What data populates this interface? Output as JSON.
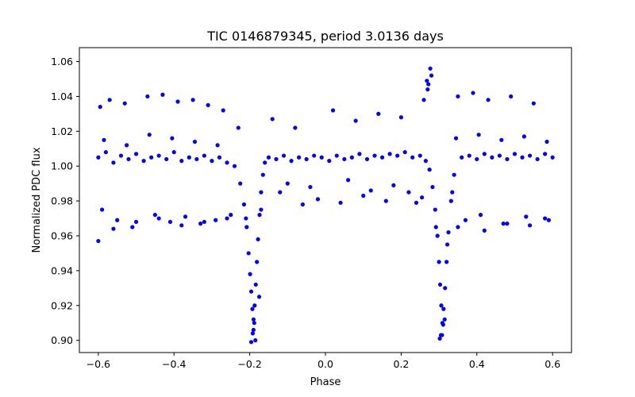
{
  "chart_data": {
    "type": "scatter",
    "title": "TIC 0146879345, period 3.0136 days",
    "xlabel": "Phase",
    "ylabel": "Normalized PDC flux",
    "xlim": [
      -0.65,
      0.65
    ],
    "ylim": [
      0.893,
      1.068
    ],
    "xticks": [
      -0.6,
      -0.4,
      -0.2,
      0.0,
      0.2,
      0.4,
      0.6
    ],
    "xtick_labels": [
      "−0.6",
      "−0.4",
      "−0.2",
      "0.0",
      "0.2",
      "0.4",
      "0.6"
    ],
    "yticks": [
      0.9,
      0.92,
      0.94,
      0.96,
      0.98,
      1.0,
      1.02,
      1.04,
      1.06
    ],
    "ytick_labels": [
      "0.90",
      "0.92",
      "0.94",
      "0.96",
      "0.98",
      "1.00",
      "1.02",
      "1.04",
      "1.06"
    ],
    "grid": false,
    "marker_color": "#0000ff",
    "series": [
      {
        "x": [
          -0.6,
          -0.58,
          -0.56,
          -0.54,
          -0.52,
          -0.5,
          -0.48,
          -0.46,
          -0.44,
          -0.42,
          -0.4,
          -0.38,
          -0.36,
          -0.34,
          -0.32,
          -0.3,
          -0.28,
          -0.26,
          -0.24,
          -0.225,
          -0.215,
          -0.208,
          -0.203,
          -0.199,
          -0.196,
          -0.193,
          -0.19,
          -0.187,
          -0.184,
          -0.181,
          -0.178,
          -0.174,
          -0.17,
          -0.165,
          -0.16,
          -0.15,
          -0.13,
          -0.11,
          -0.09,
          -0.07,
          -0.05,
          -0.03,
          -0.01,
          0.01,
          0.03,
          0.05,
          0.07,
          0.09,
          0.11,
          0.13,
          0.15,
          0.17,
          0.19,
          0.21,
          0.23,
          0.25,
          0.265,
          0.275,
          0.283,
          0.29,
          0.296,
          0.3,
          0.303,
          0.306,
          0.309,
          0.312,
          0.316,
          0.32,
          0.325,
          0.332,
          0.34,
          0.36,
          0.38,
          0.4,
          0.42,
          0.44,
          0.46,
          0.48,
          0.5,
          0.52,
          0.54,
          0.56,
          0.58,
          0.6,
          -0.595,
          -0.57,
          -0.53,
          -0.47,
          -0.43,
          -0.39,
          -0.35,
          -0.31,
          -0.27,
          -0.23,
          -0.59,
          -0.55,
          -0.51,
          -0.45,
          -0.41,
          -0.37,
          -0.33,
          -0.29,
          -0.25,
          -0.19,
          -0.185,
          -0.175,
          -0.12,
          -0.06,
          -0.02,
          0.04,
          0.1,
          0.16,
          0.22,
          0.24,
          0.255,
          0.27,
          0.28,
          0.305,
          0.315,
          0.335,
          0.37,
          0.41,
          0.47,
          0.53,
          0.59,
          -0.14,
          -0.08,
          0.02,
          0.08,
          0.14,
          0.2,
          -0.585,
          -0.525,
          -0.465,
          -0.405,
          -0.345,
          -0.285,
          0.345,
          0.405,
          0.465,
          0.525,
          0.585,
          0.268,
          0.272,
          0.277,
          0.26,
          0.35,
          0.39,
          0.43,
          0.49,
          0.55,
          -0.6,
          -0.56,
          -0.5,
          -0.44,
          -0.38,
          -0.32,
          -0.26,
          0.35,
          0.42,
          0.48,
          0.54,
          0.58,
          -0.1,
          -0.04,
          0.06,
          0.12,
          0.18,
          -0.196,
          -0.192,
          -0.188,
          0.302,
          0.308,
          0.311,
          -0.21,
          -0.17,
          0.292,
          0.322
        ],
        "y": [
          1.005,
          1.008,
          1.002,
          1.006,
          1.004,
          1.007,
          1.003,
          1.005,
          1.006,
          1.004,
          1.008,
          1.003,
          1.005,
          1.004,
          1.006,
          1.003,
          1.005,
          1.002,
          1.0,
          0.99,
          0.978,
          0.965,
          0.95,
          0.938,
          0.928,
          0.918,
          0.912,
          0.92,
          0.932,
          0.945,
          0.958,
          0.972,
          0.985,
          0.995,
          1.002,
          1.005,
          1.004,
          1.006,
          1.003,
          1.005,
          1.004,
          1.006,
          1.005,
          1.003,
          1.006,
          1.004,
          1.005,
          1.007,
          1.004,
          1.006,
          1.005,
          1.007,
          1.006,
          1.008,
          1.005,
          1.006,
          1.003,
          0.998,
          0.988,
          0.975,
          0.96,
          0.945,
          0.932,
          0.92,
          0.91,
          0.918,
          0.93,
          0.945,
          0.962,
          0.98,
          0.995,
          1.005,
          1.006,
          1.004,
          1.007,
          1.005,
          1.006,
          1.004,
          1.007,
          1.005,
          1.006,
          1.004,
          1.007,
          1.005,
          1.034,
          1.038,
          1.036,
          1.04,
          1.041,
          1.037,
          1.038,
          1.035,
          1.032,
          1.022,
          0.975,
          0.969,
          0.965,
          0.972,
          0.968,
          0.971,
          0.967,
          0.969,
          0.972,
          0.906,
          0.9,
          0.925,
          0.985,
          0.978,
          0.981,
          0.979,
          0.983,
          0.98,
          0.985,
          0.979,
          0.982,
          1.044,
          1.052,
          0.903,
          0.912,
          0.985,
          0.969,
          0.972,
          0.967,
          0.971,
          0.969,
          1.027,
          1.022,
          1.032,
          1.026,
          1.03,
          1.028,
          1.015,
          1.012,
          1.018,
          1.016,
          1.014,
          1.012,
          1.016,
          1.018,
          1.015,
          1.017,
          1.014,
          1.049,
          1.047,
          1.056,
          1.038,
          1.04,
          1.042,
          1.038,
          1.04,
          1.036,
          0.957,
          0.964,
          0.968,
          0.97,
          0.966,
          0.968,
          0.97,
          0.965,
          0.963,
          0.967,
          0.966,
          0.97,
          0.99,
          0.988,
          0.992,
          0.986,
          0.989,
          0.899,
          0.904,
          0.91,
          0.901,
          0.903,
          0.909,
          0.97,
          0.975,
          0.965,
          0.955
        ]
      }
    ]
  }
}
